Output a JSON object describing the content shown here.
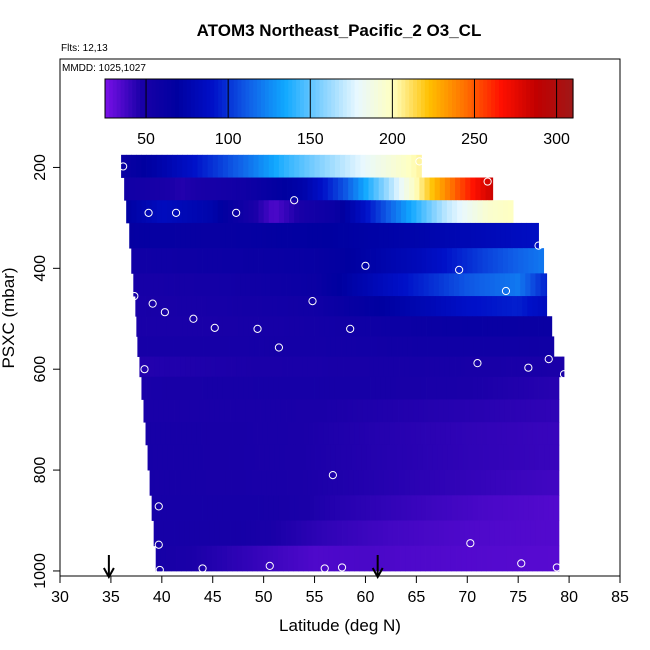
{
  "chart_data": {
    "type": "heatmap",
    "title": "ATOM3 Northeast_Pacific_2 O3_CL",
    "flights_text": "Flts: 12,13",
    "mmdd_text": "MMDD: 1025,1027",
    "xlabel": "Latitude (deg N)",
    "ylabel": "PSXC (mbar)",
    "xlim": [
      30,
      85
    ],
    "ylim": [
      1000,
      0
    ],
    "x_ticks": [
      30,
      35,
      40,
      45,
      50,
      55,
      60,
      65,
      70,
      75,
      80,
      85
    ],
    "x_tick_labels": [
      "30",
      "35",
      "40",
      "45",
      "50",
      "55",
      "60",
      "65",
      "70",
      "75",
      "80",
      "85"
    ],
    "y_ticks": [
      200,
      400,
      600,
      800,
      1000
    ],
    "y_tick_labels": [
      "200",
      "400",
      "600",
      "800",
      "1000"
    ],
    "colorbar": {
      "range": [
        25,
        310
      ],
      "ticks": [
        50,
        100,
        150,
        200,
        250,
        300
      ],
      "tick_labels": [
        "50",
        "100",
        "150",
        "200",
        "250",
        "300"
      ],
      "colors": [
        "#7a10e8",
        "#1a00a8",
        "#0000a0",
        "#0010c8",
        "#1060e8",
        "#10a8ff",
        "#80d0ff",
        "#e8f8ff",
        "#ffffc0",
        "#ffc000",
        "#ff7000",
        "#ff1000",
        "#c00000",
        "#a01818"
      ]
    },
    "rows": [
      {
        "p_top": 175,
        "p_bot": 220,
        "x_start": 36.0,
        "x_end": 65.5,
        "stops": [
          [
            36,
            60
          ],
          [
            40,
            75
          ],
          [
            44,
            95
          ],
          [
            48,
            115
          ],
          [
            52,
            140
          ],
          [
            56,
            160
          ],
          [
            60,
            180
          ],
          [
            65.5,
            205
          ]
        ]
      },
      {
        "p_top": 220,
        "p_bot": 265,
        "x_start": 36.3,
        "x_end": 72.5,
        "stops": [
          [
            36.3,
            55
          ],
          [
            42,
            45
          ],
          [
            48,
            55
          ],
          [
            54,
            75
          ],
          [
            58,
            110
          ],
          [
            62,
            160
          ],
          [
            66,
            215
          ],
          [
            69,
            250
          ],
          [
            72.5,
            285
          ]
        ]
      },
      {
        "p_top": 265,
        "p_bot": 310,
        "x_start": 36.5,
        "x_end": 74.5,
        "stops": [
          [
            36.5,
            70
          ],
          [
            40,
            85
          ],
          [
            45,
            75
          ],
          [
            48,
            55
          ],
          [
            51,
            35
          ],
          [
            54,
            50
          ],
          [
            57,
            60
          ],
          [
            60,
            90
          ],
          [
            64,
            130
          ],
          [
            68,
            170
          ],
          [
            72,
            195
          ],
          [
            74.5,
            200
          ]
        ]
      },
      {
        "p_top": 310,
        "p_bot": 360,
        "x_start": 36.8,
        "x_end": 77.0,
        "stops": [
          [
            36.8,
            65
          ],
          [
            45,
            62
          ],
          [
            55,
            68
          ],
          [
            65,
            75
          ],
          [
            72,
            82
          ],
          [
            77,
            88
          ]
        ]
      },
      {
        "p_top": 360,
        "p_bot": 410,
        "x_start": 37.0,
        "x_end": 77.5,
        "stops": [
          [
            37,
            55
          ],
          [
            45,
            58
          ],
          [
            55,
            62
          ],
          [
            65,
            82
          ],
          [
            72,
            105
          ],
          [
            77.5,
            120
          ]
        ]
      },
      {
        "p_top": 410,
        "p_bot": 455,
        "x_start": 37.2,
        "x_end": 77.8,
        "stops": [
          [
            37.2,
            50
          ],
          [
            45,
            52
          ],
          [
            55,
            60
          ],
          [
            62,
            85
          ],
          [
            70,
            110
          ],
          [
            75,
            120
          ],
          [
            77.8,
            95
          ]
        ]
      },
      {
        "p_top": 455,
        "p_bot": 495,
        "x_start": 37.4,
        "x_end": 77.8,
        "stops": [
          [
            37.4,
            48
          ],
          [
            45,
            50
          ],
          [
            55,
            55
          ],
          [
            62,
            70
          ],
          [
            70,
            90
          ],
          [
            75,
            95
          ],
          [
            77.8,
            85
          ]
        ]
      },
      {
        "p_top": 495,
        "p_bot": 535,
        "x_start": 37.5,
        "x_end": 78.3,
        "stops": [
          [
            37.5,
            48
          ],
          [
            45,
            48
          ],
          [
            55,
            52
          ],
          [
            62,
            58
          ],
          [
            70,
            62
          ],
          [
            78.3,
            60
          ]
        ]
      },
      {
        "p_top": 535,
        "p_bot": 575,
        "x_start": 37.6,
        "x_end": 78.5,
        "stops": [
          [
            37.6,
            50
          ],
          [
            45,
            50
          ],
          [
            55,
            52
          ],
          [
            65,
            55
          ],
          [
            78.5,
            55
          ]
        ]
      },
      {
        "p_top": 575,
        "p_bot": 615,
        "x_start": 37.8,
        "x_end": 79.5,
        "stops": [
          [
            37.8,
            45
          ],
          [
            50,
            47
          ],
          [
            65,
            50
          ],
          [
            79.5,
            47
          ]
        ]
      },
      {
        "p_top": 615,
        "p_bot": 660,
        "x_start": 38.0,
        "x_end": 79.0,
        "stops": [
          [
            38,
            48
          ],
          [
            50,
            50
          ],
          [
            60,
            50
          ],
          [
            70,
            47
          ],
          [
            79,
            44
          ]
        ]
      },
      {
        "p_top": 660,
        "p_bot": 705,
        "x_start": 38.2,
        "x_end": 79.0,
        "stops": [
          [
            38.2,
            48
          ],
          [
            50,
            48
          ],
          [
            60,
            46
          ],
          [
            70,
            44
          ],
          [
            79,
            42
          ]
        ]
      },
      {
        "p_top": 705,
        "p_bot": 750,
        "x_start": 38.4,
        "x_end": 79.0,
        "stops": [
          [
            38.4,
            50
          ],
          [
            50,
            48
          ],
          [
            60,
            45
          ],
          [
            70,
            42
          ],
          [
            79,
            40
          ]
        ]
      },
      {
        "p_top": 750,
        "p_bot": 800,
        "x_start": 38.6,
        "x_end": 79.0,
        "stops": [
          [
            38.6,
            50
          ],
          [
            50,
            48
          ],
          [
            60,
            45
          ],
          [
            70,
            42
          ],
          [
            79,
            40
          ]
        ]
      },
      {
        "p_top": 800,
        "p_bot": 850,
        "x_start": 38.8,
        "x_end": 79.0,
        "stops": [
          [
            38.8,
            50
          ],
          [
            50,
            48
          ],
          [
            60,
            45
          ],
          [
            68,
            42
          ],
          [
            79,
            38
          ]
        ]
      },
      {
        "p_top": 850,
        "p_bot": 900,
        "x_start": 39.0,
        "x_end": 79.0,
        "stops": [
          [
            39,
            50
          ],
          [
            50,
            50
          ],
          [
            58,
            44
          ],
          [
            65,
            40
          ],
          [
            72,
            36
          ],
          [
            79,
            34
          ]
        ]
      },
      {
        "p_top": 900,
        "p_bot": 950,
        "x_start": 39.2,
        "x_end": 79.0,
        "stops": [
          [
            39.2,
            50
          ],
          [
            48,
            50
          ],
          [
            56,
            42
          ],
          [
            62,
            38
          ],
          [
            70,
            35
          ],
          [
            79,
            34
          ]
        ]
      },
      {
        "p_top": 950,
        "p_bot": 1000,
        "x_start": 39.4,
        "x_end": 79.0,
        "stops": [
          [
            39.4,
            50
          ],
          [
            45,
            45
          ],
          [
            50,
            40
          ],
          [
            55,
            35
          ],
          [
            60,
            36
          ],
          [
            70,
            34
          ],
          [
            79,
            33
          ]
        ]
      }
    ],
    "points": [
      {
        "x": 36.2,
        "p": 198
      },
      {
        "x": 65.3,
        "p": 188
      },
      {
        "x": 72.0,
        "p": 228
      },
      {
        "x": 38.7,
        "p": 290
      },
      {
        "x": 41.4,
        "p": 290
      },
      {
        "x": 47.3,
        "p": 290
      },
      {
        "x": 53.0,
        "p": 265
      },
      {
        "x": 77.0,
        "p": 355
      },
      {
        "x": 60.0,
        "p": 395
      },
      {
        "x": 69.2,
        "p": 403
      },
      {
        "x": 73.8,
        "p": 445
      },
      {
        "x": 37.3,
        "p": 455
      },
      {
        "x": 39.1,
        "p": 470
      },
      {
        "x": 40.3,
        "p": 487
      },
      {
        "x": 54.8,
        "p": 465
      },
      {
        "x": 43.1,
        "p": 500
      },
      {
        "x": 45.2,
        "p": 518
      },
      {
        "x": 49.4,
        "p": 520
      },
      {
        "x": 58.5,
        "p": 520
      },
      {
        "x": 51.5,
        "p": 557
      },
      {
        "x": 78.0,
        "p": 580
      },
      {
        "x": 71.0,
        "p": 588
      },
      {
        "x": 76.0,
        "p": 597
      },
      {
        "x": 38.3,
        "p": 600
      },
      {
        "x": 79.5,
        "p": 610
      },
      {
        "x": 56.8,
        "p": 810
      },
      {
        "x": 39.7,
        "p": 872
      },
      {
        "x": 39.7,
        "p": 948
      },
      {
        "x": 70.3,
        "p": 945
      },
      {
        "x": 39.8,
        "p": 998
      },
      {
        "x": 44.0,
        "p": 995
      },
      {
        "x": 50.6,
        "p": 990
      },
      {
        "x": 56.0,
        "p": 995
      },
      {
        "x": 57.7,
        "p": 993
      },
      {
        "x": 75.3,
        "p": 985
      },
      {
        "x": 78.8,
        "p": 993
      }
    ],
    "arrows": [
      34.8,
      61.2
    ]
  }
}
